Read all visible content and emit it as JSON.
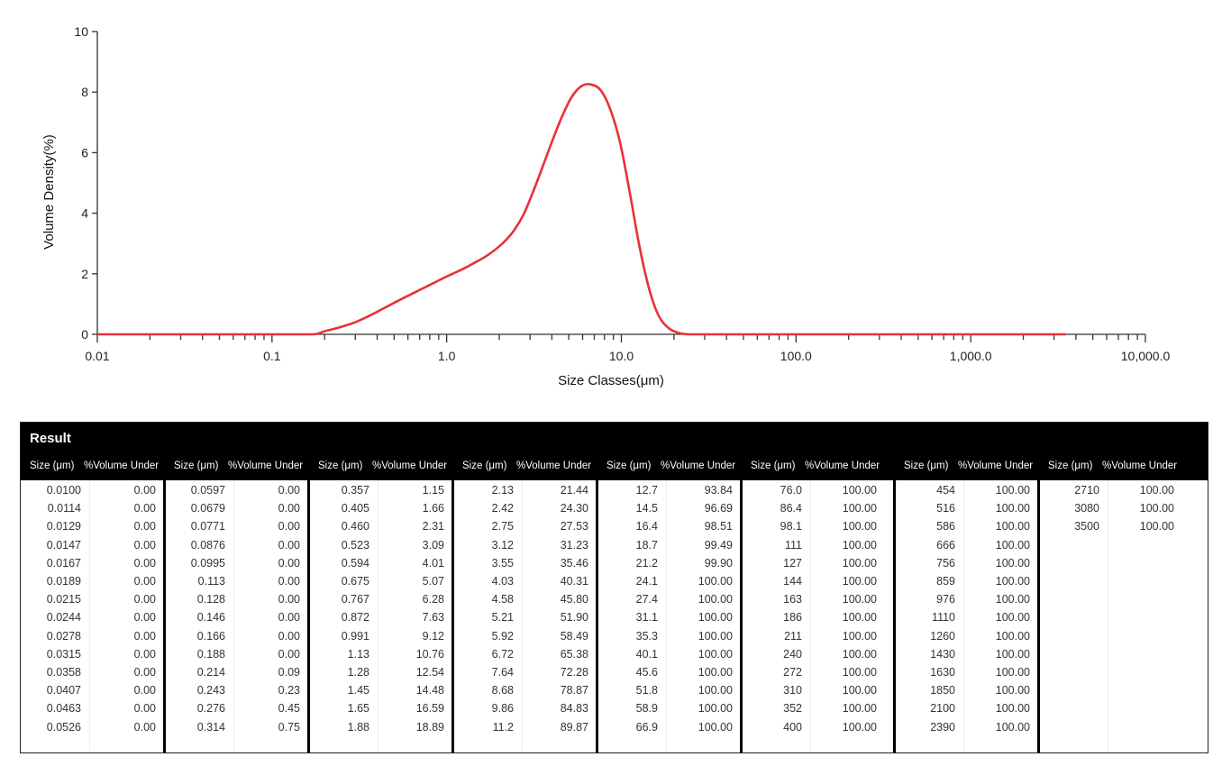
{
  "chart_data": {
    "type": "line",
    "xlabel": "Size Classes(μm)",
    "ylabel": "Volume Density(%)",
    "x_scale": "log",
    "xlim": [
      0.01,
      10000
    ],
    "ylim": [
      0,
      10
    ],
    "x_tick_labels": [
      "0.01",
      "0.1",
      "1.0",
      "10.0",
      "100.0",
      "1,000.0",
      "10,000.0"
    ],
    "y_tick_labels": [
      "0",
      "2",
      "4",
      "6",
      "8",
      "10"
    ],
    "grid": false,
    "color": "#e8313a",
    "series": [
      {
        "x": [
          0.01,
          0.1,
          0.17,
          0.2,
          0.25,
          0.3,
          0.357,
          0.405,
          0.46,
          0.523,
          0.594,
          0.675,
          0.767,
          0.872,
          0.991,
          1.13,
          1.28,
          1.45,
          1.65,
          1.88,
          2.13,
          2.42,
          2.75,
          3.12,
          3.55,
          4.03,
          4.58,
          5.21,
          5.92,
          6.72,
          7.64,
          8.68,
          9.86,
          11.2,
          12.7,
          14.5,
          16.4,
          18.7,
          21.2,
          24.1,
          27.4,
          31.1,
          100,
          1000,
          3500
        ],
        "y": [
          0,
          0,
          0,
          0.1,
          0.25,
          0.4,
          0.6,
          0.76,
          0.93,
          1.1,
          1.26,
          1.42,
          1.58,
          1.74,
          1.9,
          2.05,
          2.2,
          2.37,
          2.55,
          2.78,
          3.05,
          3.42,
          3.95,
          4.7,
          5.55,
          6.4,
          7.2,
          7.85,
          8.2,
          8.25,
          8.05,
          7.4,
          6.3,
          4.65,
          2.9,
          1.45,
          0.6,
          0.2,
          0.05,
          0,
          0,
          0,
          0,
          0,
          0
        ]
      }
    ]
  },
  "result": {
    "title": "Result",
    "size_header": "Size (μm)",
    "vol_header": "%Volume Under",
    "groups": [
      {
        "sizes": [
          "0.0100",
          "0.0114",
          "0.0129",
          "0.0147",
          "0.0167",
          "0.0189",
          "0.0215",
          "0.0244",
          "0.0278",
          "0.0315",
          "0.0358",
          "0.0407",
          "0.0463",
          "0.0526"
        ],
        "vols": [
          "0.00",
          "0.00",
          "0.00",
          "0.00",
          "0.00",
          "0.00",
          "0.00",
          "0.00",
          "0.00",
          "0.00",
          "0.00",
          "0.00",
          "0.00",
          "0.00"
        ]
      },
      {
        "sizes": [
          "0.0597",
          "0.0679",
          "0.0771",
          "0.0876",
          "0.0995",
          "0.113",
          "0.128",
          "0.146",
          "0.166",
          "0.188",
          "0.214",
          "0.243",
          "0.276",
          "0.314"
        ],
        "vols": [
          "0.00",
          "0.00",
          "0.00",
          "0.00",
          "0.00",
          "0.00",
          "0.00",
          "0.00",
          "0.00",
          "0.00",
          "0.09",
          "0.23",
          "0.45",
          "0.75"
        ]
      },
      {
        "sizes": [
          "0.357",
          "0.405",
          "0.460",
          "0.523",
          "0.594",
          "0.675",
          "0.767",
          "0.872",
          "0.991",
          "1.13",
          "1.28",
          "1.45",
          "1.65",
          "1.88"
        ],
        "vols": [
          "1.15",
          "1.66",
          "2.31",
          "3.09",
          "4.01",
          "5.07",
          "6.28",
          "7.63",
          "9.12",
          "10.76",
          "12.54",
          "14.48",
          "16.59",
          "18.89"
        ]
      },
      {
        "sizes": [
          "2.13",
          "2.42",
          "2.75",
          "3.12",
          "3.55",
          "4.03",
          "4.58",
          "5.21",
          "5.92",
          "6.72",
          "7.64",
          "8.68",
          "9.86",
          "11.2"
        ],
        "vols": [
          "21.44",
          "24.30",
          "27.53",
          "31.23",
          "35.46",
          "40.31",
          "45.80",
          "51.90",
          "58.49",
          "65.38",
          "72.28",
          "78.87",
          "84.83",
          "89.87"
        ]
      },
      {
        "sizes": [
          "12.7",
          "14.5",
          "16.4",
          "18.7",
          "21.2",
          "24.1",
          "27.4",
          "31.1",
          "35.3",
          "40.1",
          "45.6",
          "51.8",
          "58.9",
          "66.9"
        ],
        "vols": [
          "93.84",
          "96.69",
          "98.51",
          "99.49",
          "99.90",
          "100.00",
          "100.00",
          "100.00",
          "100.00",
          "100.00",
          "100.00",
          "100.00",
          "100.00",
          "100.00"
        ]
      },
      {
        "sizes": [
          "76.0",
          "86.4",
          "98.1",
          "111",
          "127",
          "144",
          "163",
          "186",
          "211",
          "240",
          "272",
          "310",
          "352",
          "400"
        ],
        "vols": [
          "100.00",
          "100.00",
          "100.00",
          "100.00",
          "100.00",
          "100.00",
          "100.00",
          "100.00",
          "100.00",
          "100.00",
          "100.00",
          "100.00",
          "100.00",
          "100.00"
        ]
      },
      {
        "sizes": [
          "454",
          "516",
          "586",
          "666",
          "756",
          "859",
          "976",
          "1110",
          "1260",
          "1430",
          "1630",
          "1850",
          "2100",
          "2390"
        ],
        "vols": [
          "100.00",
          "100.00",
          "100.00",
          "100.00",
          "100.00",
          "100.00",
          "100.00",
          "100.00",
          "100.00",
          "100.00",
          "100.00",
          "100.00",
          "100.00",
          "100.00"
        ]
      },
      {
        "sizes": [
          "2710",
          "3080",
          "3500"
        ],
        "vols": [
          "100.00",
          "100.00",
          "100.00"
        ]
      }
    ]
  }
}
